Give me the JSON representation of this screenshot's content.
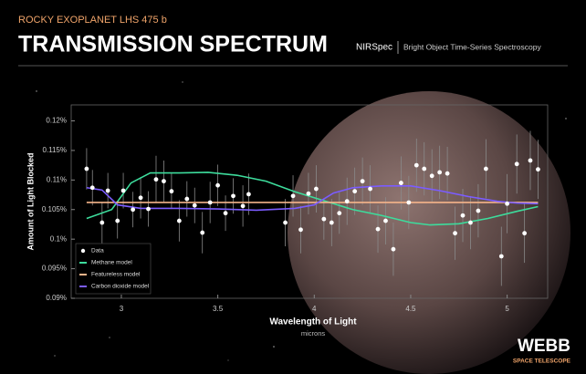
{
  "header": {
    "instrument": "NIRSpec",
    "mode": "Bright Object Time-Series Spectroscopy"
  },
  "logo": {
    "name": "WEBB",
    "tagline": "SPACE TELESCOPE"
  },
  "chart_data": {
    "type": "spectrum",
    "subtitle": "ROCKY EXOPLANET LHS 475 b",
    "title": "TRANSMISSION SPECTRUM",
    "x_label": "Wavelength of Light",
    "x_unit": "microns",
    "y_label": "Amount of Light Blocked",
    "xlim": [
      2.74,
      5.21
    ],
    "ylim": [
      0.09,
      0.1227
    ],
    "xticks": [
      3,
      3.5,
      4,
      4.5,
      5
    ],
    "yticks": [
      {
        "value": 0.09,
        "label": "0.09%"
      },
      {
        "value": 0.095,
        "label": "0.095%"
      },
      {
        "value": 0.1,
        "label": "0.1%"
      },
      {
        "value": 0.105,
        "label": "0.105%"
      },
      {
        "value": 0.11,
        "label": "0.11%"
      },
      {
        "value": 0.115,
        "label": "0.115%"
      },
      {
        "value": 0.12,
        "label": "0.12%"
      }
    ],
    "legend": "lower-left",
    "series": [
      {
        "name": "Data",
        "type": "scatter",
        "color": "#ffffff",
        "x": [
          2.82,
          2.85,
          2.9,
          2.93,
          2.98,
          3.01,
          3.06,
          3.1,
          3.14,
          3.18,
          3.22,
          3.26,
          3.3,
          3.34,
          3.38,
          3.42,
          3.46,
          3.5,
          3.54,
          3.58,
          3.63,
          3.66,
          3.85,
          3.89,
          3.93,
          3.97,
          4.01,
          4.05,
          4.09,
          4.13,
          4.17,
          4.21,
          4.25,
          4.29,
          4.33,
          4.37,
          4.41,
          4.45,
          4.49,
          4.53,
          4.57,
          4.61,
          4.65,
          4.69,
          4.73,
          4.77,
          4.81,
          4.85,
          4.89,
          4.97,
          5.0,
          5.05,
          5.09,
          5.12,
          5.16
        ],
        "values": [
          0.1119,
          0.1087,
          0.1028,
          0.1082,
          0.1031,
          0.1082,
          0.105,
          0.107,
          0.1051,
          0.1101,
          0.1098,
          0.1081,
          0.1031,
          0.1068,
          0.1057,
          0.1011,
          0.1062,
          0.1091,
          0.1044,
          0.1073,
          0.1056,
          0.1076,
          0.1028,
          0.1073,
          0.1016,
          0.1077,
          0.1085,
          0.1034,
          0.1028,
          0.1044,
          0.1064,
          0.1081,
          0.1098,
          0.1085,
          0.1017,
          0.1031,
          0.0983,
          0.1095,
          0.1062,
          0.1125,
          0.1119,
          0.1107,
          0.1113,
          0.1111,
          0.101,
          0.104,
          0.1028,
          0.1048,
          0.1119,
          0.0971,
          0.106,
          0.1127,
          0.101,
          0.1133,
          0.1118
        ],
        "errors": [
          0.0035,
          0.003,
          0.0035,
          0.003,
          0.003,
          0.003,
          0.003,
          0.0035,
          0.003,
          0.004,
          0.0035,
          0.003,
          0.0035,
          0.003,
          0.003,
          0.0035,
          0.0035,
          0.0035,
          0.003,
          0.003,
          0.0035,
          0.0035,
          0.004,
          0.0035,
          0.004,
          0.0035,
          0.004,
          0.0035,
          0.004,
          0.0035,
          0.004,
          0.004,
          0.004,
          0.004,
          0.004,
          0.004,
          0.0045,
          0.0045,
          0.0045,
          0.0045,
          0.0045,
          0.0045,
          0.0045,
          0.0045,
          0.0045,
          0.0045,
          0.0045,
          0.0045,
          0.005,
          0.005,
          0.005,
          0.005,
          0.005,
          0.005,
          0.005
        ]
      },
      {
        "name": "Methane model",
        "type": "line",
        "color": "#3ddc9c",
        "x": [
          2.82,
          2.95,
          3.05,
          3.15,
          3.3,
          3.45,
          3.6,
          3.75,
          3.9,
          4.05,
          4.2,
          4.35,
          4.5,
          4.6,
          4.75,
          4.9,
          5.05,
          5.16
        ],
        "values": [
          0.1035,
          0.105,
          0.1095,
          0.1112,
          0.1112,
          0.1113,
          0.1108,
          0.1098,
          0.108,
          0.1065,
          0.105,
          0.104,
          0.1028,
          0.1024,
          0.1026,
          0.1035,
          0.1047,
          0.1055
        ]
      },
      {
        "name": "Featureless model",
        "type": "line",
        "color": "#f6b48a",
        "x": [
          2.82,
          5.16
        ],
        "values": [
          0.1062,
          0.1062
        ]
      },
      {
        "name": "Carbon dioxide model",
        "type": "line",
        "color": "#7b5cff",
        "x": [
          2.82,
          2.9,
          2.98,
          3.1,
          3.3,
          3.5,
          3.7,
          3.9,
          4.0,
          4.1,
          4.2,
          4.35,
          4.5,
          4.65,
          4.8,
          4.95,
          5.05,
          5.16
        ],
        "values": [
          0.1087,
          0.1083,
          0.1058,
          0.1052,
          0.1052,
          0.1051,
          0.1049,
          0.1052,
          0.1058,
          0.1078,
          0.1087,
          0.109,
          0.109,
          0.1082,
          0.1072,
          0.1064,
          0.1061,
          0.106
        ]
      }
    ]
  }
}
